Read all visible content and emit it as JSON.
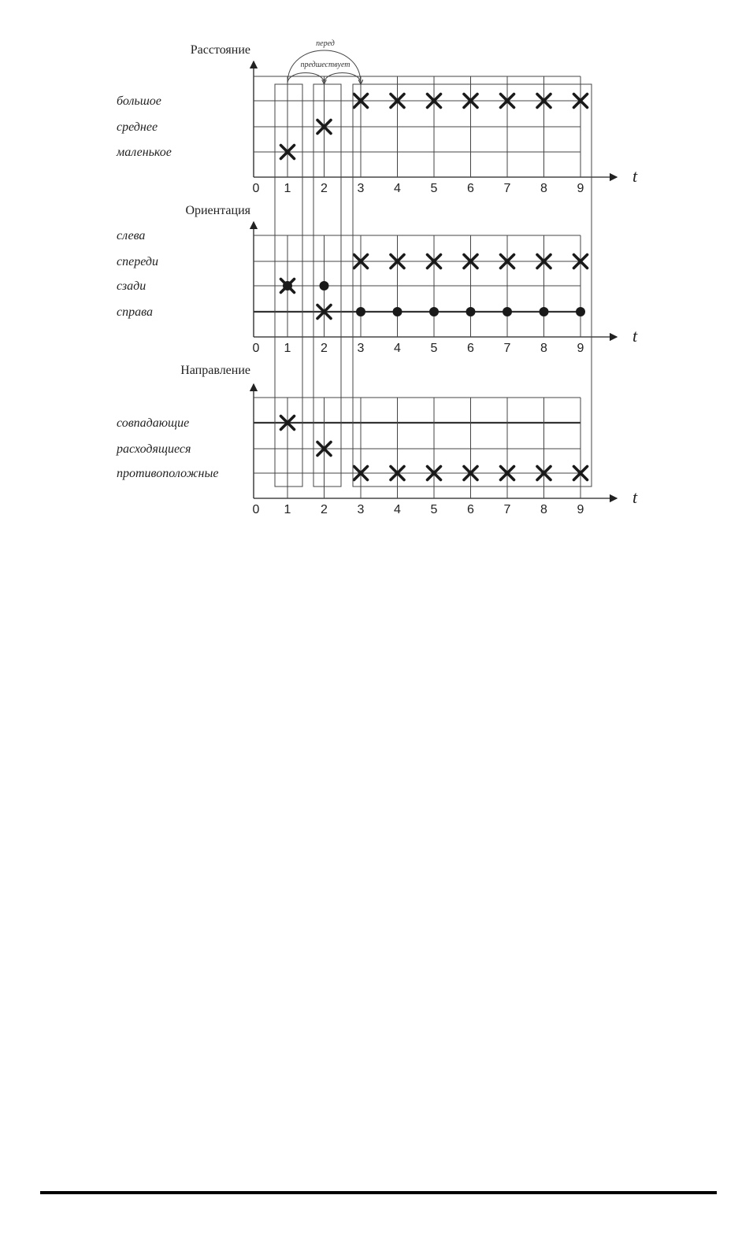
{
  "diagram": {
    "time_axis_label": "t",
    "ticks": [
      "0",
      "1",
      "2",
      "3",
      "4",
      "5",
      "6",
      "7",
      "8",
      "9"
    ],
    "relations": {
      "before": "перед",
      "precedes": "предшествует"
    },
    "panels": [
      {
        "title": "Расстояние",
        "rows": [
          "большое",
          "среднее",
          "маленькое"
        ],
        "thick_row": null,
        "marks": [
          {
            "t": 1,
            "row": "маленькое",
            "type": "cross"
          },
          {
            "t": 2,
            "row": "среднее",
            "type": "cross"
          },
          {
            "t": 3,
            "row": "большое",
            "type": "cross"
          },
          {
            "t": 4,
            "row": "большое",
            "type": "cross"
          },
          {
            "t": 5,
            "row": "большое",
            "type": "cross"
          },
          {
            "t": 6,
            "row": "большое",
            "type": "cross"
          },
          {
            "t": 7,
            "row": "большое",
            "type": "cross"
          },
          {
            "t": 8,
            "row": "большое",
            "type": "cross"
          },
          {
            "t": 9,
            "row": "большое",
            "type": "cross"
          }
        ]
      },
      {
        "title": "Ориентация",
        "rows": [
          "слева",
          "спереди",
          "сзади",
          "справа"
        ],
        "thick_row": "справа",
        "marks": [
          {
            "t": 1,
            "row": "сзади",
            "type": "cross"
          },
          {
            "t": 1,
            "row": "сзади",
            "type": "dot"
          },
          {
            "t": 2,
            "row": "сзади",
            "type": "dot"
          },
          {
            "t": 2,
            "row": "справа",
            "type": "cross"
          },
          {
            "t": 3,
            "row": "спереди",
            "type": "cross"
          },
          {
            "t": 4,
            "row": "спереди",
            "type": "cross"
          },
          {
            "t": 5,
            "row": "спереди",
            "type": "cross"
          },
          {
            "t": 6,
            "row": "спереди",
            "type": "cross"
          },
          {
            "t": 7,
            "row": "спереди",
            "type": "cross"
          },
          {
            "t": 8,
            "row": "спереди",
            "type": "cross"
          },
          {
            "t": 9,
            "row": "спереди",
            "type": "cross"
          },
          {
            "t": 3,
            "row": "справа",
            "type": "dot"
          },
          {
            "t": 4,
            "row": "справа",
            "type": "dot"
          },
          {
            "t": 5,
            "row": "справа",
            "type": "dot"
          },
          {
            "t": 6,
            "row": "справа",
            "type": "dot"
          },
          {
            "t": 7,
            "row": "справа",
            "type": "dot"
          },
          {
            "t": 8,
            "row": "справа",
            "type": "dot"
          },
          {
            "t": 9,
            "row": "справа",
            "type": "dot"
          }
        ]
      },
      {
        "title": "Направление",
        "rows": [
          "совпадающие",
          "расходящиеся",
          "противоположные"
        ],
        "thick_row": "совпадающие",
        "marks": [
          {
            "t": 1,
            "row": "совпадающие",
            "type": "cross"
          },
          {
            "t": 2,
            "row": "расходящиеся",
            "type": "cross"
          },
          {
            "t": 3,
            "row": "противоположные",
            "type": "cross"
          },
          {
            "t": 4,
            "row": "противоположные",
            "type": "cross"
          },
          {
            "t": 5,
            "row": "противоположные",
            "type": "cross"
          },
          {
            "t": 6,
            "row": "противоположные",
            "type": "cross"
          },
          {
            "t": 7,
            "row": "противоположные",
            "type": "cross"
          },
          {
            "t": 8,
            "row": "противоположные",
            "type": "cross"
          },
          {
            "t": 9,
            "row": "противоположные",
            "type": "cross"
          }
        ]
      }
    ],
    "groupings": [
      {
        "from_t": 1,
        "to_t": 1
      },
      {
        "from_t": 2,
        "to_t": 2
      },
      {
        "from_t": 3,
        "to_t": 9
      }
    ]
  }
}
